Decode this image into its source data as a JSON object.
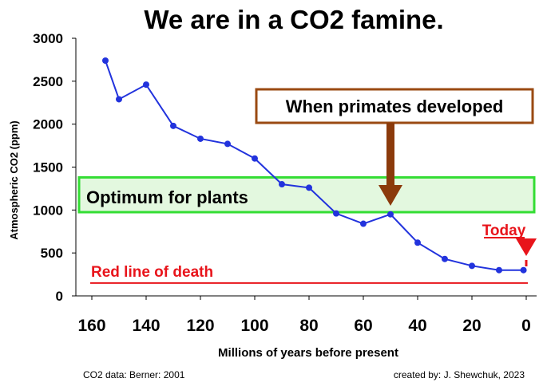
{
  "colors": {
    "series": "#2233dd",
    "marker": "#2233dd",
    "red": "#e8141b",
    "optimum_fill": "#e3f8df",
    "optimum_stroke": "#33dd33",
    "primates_box_stroke": "#9a4a12",
    "primates_arrow": "#8b3a0b"
  },
  "chart_data": {
    "type": "line",
    "title": "We are in a CO2 famine.",
    "xlabel": "Millions of years before present",
    "ylabel": "Atmospheric CO2 (ppm)",
    "x_reversed": true,
    "xlim": [
      165,
      -2
    ],
    "ylim": [
      0,
      3000
    ],
    "x_ticks": [
      160,
      140,
      120,
      100,
      80,
      60,
      40,
      20,
      0
    ],
    "y_ticks": [
      0,
      500,
      1000,
      1500,
      2000,
      2500,
      3000
    ],
    "grid": false,
    "series": [
      {
        "x": [
          155,
          150,
          140,
          130,
          120,
          110,
          100,
          90,
          80,
          70,
          60,
          50,
          40,
          30,
          20,
          10,
          1
        ],
        "values": [
          2740,
          2290,
          2460,
          1980,
          1830,
          1770,
          1600,
          1300,
          1260,
          960,
          840,
          950,
          620,
          430,
          350,
          300,
          300
        ]
      }
    ],
    "annotations": {
      "primates": {
        "text": "When primates developed",
        "x": 50
      },
      "optimum": {
        "text": "Optimum for plants",
        "y_range": [
          975,
          1380
        ]
      },
      "death": {
        "text": "Red line of death",
        "y": 150
      },
      "today": {
        "text": "Today",
        "x": 0
      }
    }
  },
  "footer": {
    "source": "CO2 data: Berner: 2001",
    "credit": "created by: J. Shewchuk, 2023"
  }
}
